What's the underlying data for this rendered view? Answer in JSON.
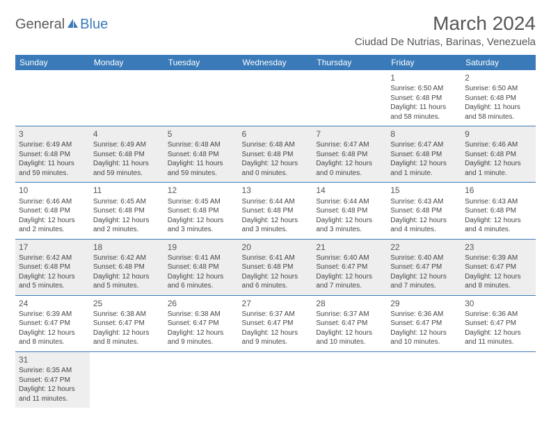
{
  "logo": {
    "text1": "General",
    "text2": "Blue"
  },
  "title": "March 2024",
  "location": "Ciudad De Nutrias, Barinas, Venezuela",
  "colors": {
    "header_bg": "#3a7ab8",
    "header_text": "#ffffff",
    "text": "#444444",
    "shaded_row": "#eeeeee",
    "border": "#3a7ab8",
    "logo_gray": "#5a5a5a",
    "logo_blue": "#3a7ab8"
  },
  "day_headers": [
    "Sunday",
    "Monday",
    "Tuesday",
    "Wednesday",
    "Thursday",
    "Friday",
    "Saturday"
  ],
  "weeks": [
    {
      "shaded": false,
      "cells": [
        null,
        null,
        null,
        null,
        null,
        {
          "n": "1",
          "sr": "Sunrise: 6:50 AM",
          "ss": "Sunset: 6:48 PM",
          "dl": "Daylight: 11 hours and 58 minutes."
        },
        {
          "n": "2",
          "sr": "Sunrise: 6:50 AM",
          "ss": "Sunset: 6:48 PM",
          "dl": "Daylight: 11 hours and 58 minutes."
        }
      ]
    },
    {
      "shaded": true,
      "cells": [
        {
          "n": "3",
          "sr": "Sunrise: 6:49 AM",
          "ss": "Sunset: 6:48 PM",
          "dl": "Daylight: 11 hours and 59 minutes."
        },
        {
          "n": "4",
          "sr": "Sunrise: 6:49 AM",
          "ss": "Sunset: 6:48 PM",
          "dl": "Daylight: 11 hours and 59 minutes."
        },
        {
          "n": "5",
          "sr": "Sunrise: 6:48 AM",
          "ss": "Sunset: 6:48 PM",
          "dl": "Daylight: 11 hours and 59 minutes."
        },
        {
          "n": "6",
          "sr": "Sunrise: 6:48 AM",
          "ss": "Sunset: 6:48 PM",
          "dl": "Daylight: 12 hours and 0 minutes."
        },
        {
          "n": "7",
          "sr": "Sunrise: 6:47 AM",
          "ss": "Sunset: 6:48 PM",
          "dl": "Daylight: 12 hours and 0 minutes."
        },
        {
          "n": "8",
          "sr": "Sunrise: 6:47 AM",
          "ss": "Sunset: 6:48 PM",
          "dl": "Daylight: 12 hours and 1 minute."
        },
        {
          "n": "9",
          "sr": "Sunrise: 6:46 AM",
          "ss": "Sunset: 6:48 PM",
          "dl": "Daylight: 12 hours and 1 minute."
        }
      ]
    },
    {
      "shaded": false,
      "cells": [
        {
          "n": "10",
          "sr": "Sunrise: 6:46 AM",
          "ss": "Sunset: 6:48 PM",
          "dl": "Daylight: 12 hours and 2 minutes."
        },
        {
          "n": "11",
          "sr": "Sunrise: 6:45 AM",
          "ss": "Sunset: 6:48 PM",
          "dl": "Daylight: 12 hours and 2 minutes."
        },
        {
          "n": "12",
          "sr": "Sunrise: 6:45 AM",
          "ss": "Sunset: 6:48 PM",
          "dl": "Daylight: 12 hours and 3 minutes."
        },
        {
          "n": "13",
          "sr": "Sunrise: 6:44 AM",
          "ss": "Sunset: 6:48 PM",
          "dl": "Daylight: 12 hours and 3 minutes."
        },
        {
          "n": "14",
          "sr": "Sunrise: 6:44 AM",
          "ss": "Sunset: 6:48 PM",
          "dl": "Daylight: 12 hours and 3 minutes."
        },
        {
          "n": "15",
          "sr": "Sunrise: 6:43 AM",
          "ss": "Sunset: 6:48 PM",
          "dl": "Daylight: 12 hours and 4 minutes."
        },
        {
          "n": "16",
          "sr": "Sunrise: 6:43 AM",
          "ss": "Sunset: 6:48 PM",
          "dl": "Daylight: 12 hours and 4 minutes."
        }
      ]
    },
    {
      "shaded": true,
      "cells": [
        {
          "n": "17",
          "sr": "Sunrise: 6:42 AM",
          "ss": "Sunset: 6:48 PM",
          "dl": "Daylight: 12 hours and 5 minutes."
        },
        {
          "n": "18",
          "sr": "Sunrise: 6:42 AM",
          "ss": "Sunset: 6:48 PM",
          "dl": "Daylight: 12 hours and 5 minutes."
        },
        {
          "n": "19",
          "sr": "Sunrise: 6:41 AM",
          "ss": "Sunset: 6:48 PM",
          "dl": "Daylight: 12 hours and 6 minutes."
        },
        {
          "n": "20",
          "sr": "Sunrise: 6:41 AM",
          "ss": "Sunset: 6:48 PM",
          "dl": "Daylight: 12 hours and 6 minutes."
        },
        {
          "n": "21",
          "sr": "Sunrise: 6:40 AM",
          "ss": "Sunset: 6:47 PM",
          "dl": "Daylight: 12 hours and 7 minutes."
        },
        {
          "n": "22",
          "sr": "Sunrise: 6:40 AM",
          "ss": "Sunset: 6:47 PM",
          "dl": "Daylight: 12 hours and 7 minutes."
        },
        {
          "n": "23",
          "sr": "Sunrise: 6:39 AM",
          "ss": "Sunset: 6:47 PM",
          "dl": "Daylight: 12 hours and 8 minutes."
        }
      ]
    },
    {
      "shaded": false,
      "cells": [
        {
          "n": "24",
          "sr": "Sunrise: 6:39 AM",
          "ss": "Sunset: 6:47 PM",
          "dl": "Daylight: 12 hours and 8 minutes."
        },
        {
          "n": "25",
          "sr": "Sunrise: 6:38 AM",
          "ss": "Sunset: 6:47 PM",
          "dl": "Daylight: 12 hours and 8 minutes."
        },
        {
          "n": "26",
          "sr": "Sunrise: 6:38 AM",
          "ss": "Sunset: 6:47 PM",
          "dl": "Daylight: 12 hours and 9 minutes."
        },
        {
          "n": "27",
          "sr": "Sunrise: 6:37 AM",
          "ss": "Sunset: 6:47 PM",
          "dl": "Daylight: 12 hours and 9 minutes."
        },
        {
          "n": "28",
          "sr": "Sunrise: 6:37 AM",
          "ss": "Sunset: 6:47 PM",
          "dl": "Daylight: 12 hours and 10 minutes."
        },
        {
          "n": "29",
          "sr": "Sunrise: 6:36 AM",
          "ss": "Sunset: 6:47 PM",
          "dl": "Daylight: 12 hours and 10 minutes."
        },
        {
          "n": "30",
          "sr": "Sunrise: 6:36 AM",
          "ss": "Sunset: 6:47 PM",
          "dl": "Daylight: 12 hours and 11 minutes."
        }
      ]
    },
    {
      "shaded": true,
      "cells": [
        {
          "n": "31",
          "sr": "Sunrise: 6:35 AM",
          "ss": "Sunset: 6:47 PM",
          "dl": "Daylight: 12 hours and 11 minutes."
        },
        null,
        null,
        null,
        null,
        null,
        null
      ]
    }
  ]
}
